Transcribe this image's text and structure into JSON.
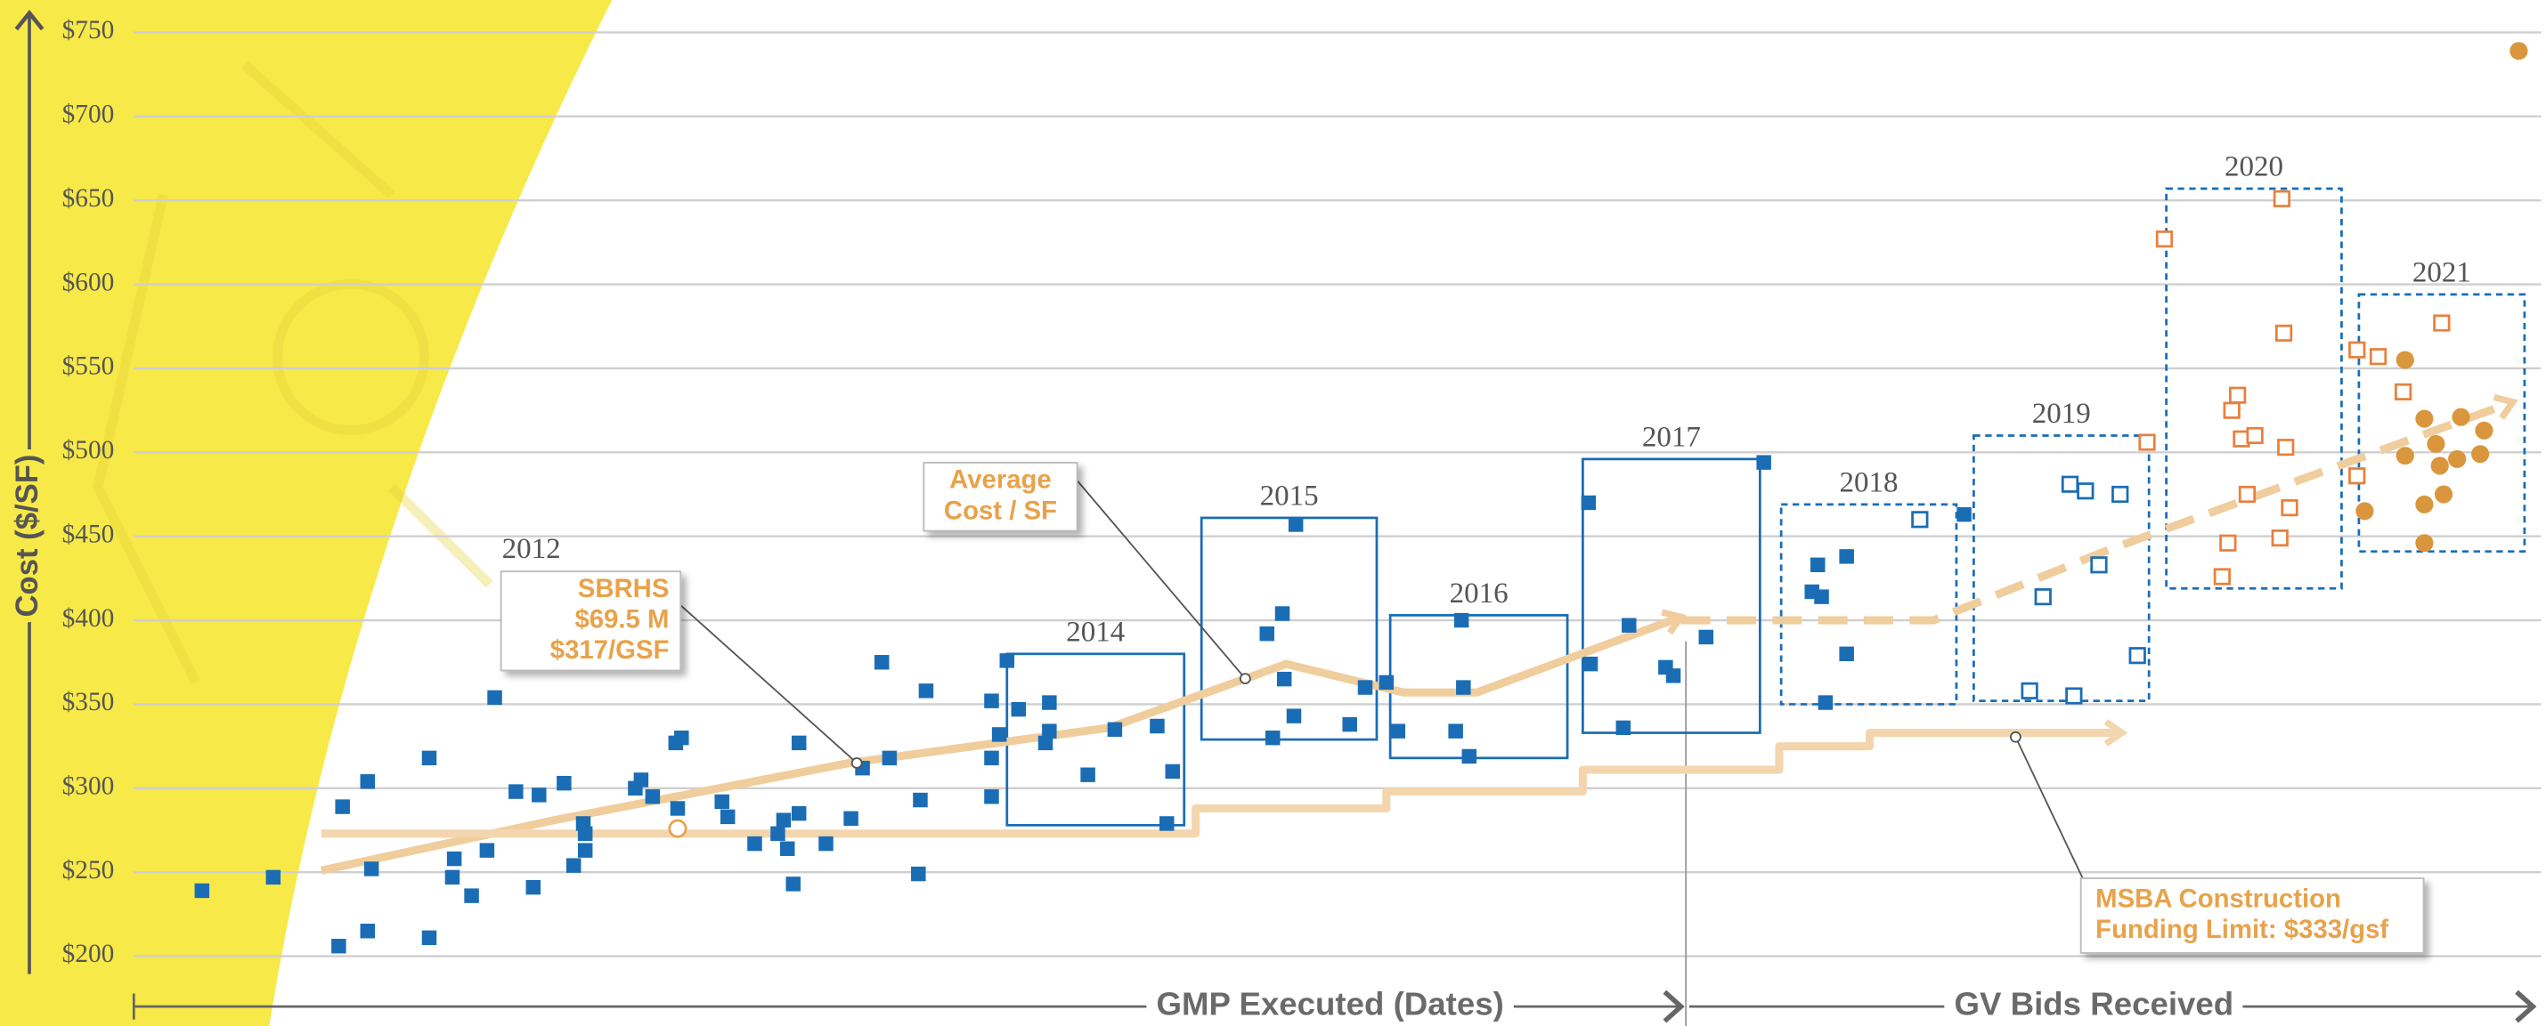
{
  "chart_data": {
    "type": "scatter",
    "y_label": "Cost ($/SF)",
    "x_axis_labels": [
      "GMP Executed (Dates)",
      "GV Bids Received"
    ],
    "xlim": [
      2009.5,
      2022
    ],
    "ylim": [
      200,
      750
    ],
    "yticks": [
      {
        "value": 200,
        "label": "$200"
      },
      {
        "value": 250,
        "label": "$250"
      },
      {
        "value": 300,
        "label": "$300"
      },
      {
        "value": 350,
        "label": "$350"
      },
      {
        "value": 400,
        "label": "$400"
      },
      {
        "value": 450,
        "label": "$450"
      },
      {
        "value": 500,
        "label": "$500"
      },
      {
        "value": 550,
        "label": "$550"
      },
      {
        "value": 600,
        "label": "$600"
      },
      {
        "value": 650,
        "label": "$650"
      },
      {
        "value": 700,
        "label": "$700"
      },
      {
        "value": 750,
        "label": "$750"
      }
    ],
    "grid": true,
    "series": [
      {
        "color": "#1a6db5",
        "marker": "square",
        "filled": true,
        "x": [
          2009.82,
          2010.19,
          2010.53,
          2010.55,
          2010.68,
          2010.68,
          2010.7,
          2011.0,
          2011.0,
          2011.12,
          2011.13,
          2011.22,
          2011.3,
          2011.34,
          2011.45,
          2011.54,
          2011.57,
          2011.7,
          2011.75,
          2011.8,
          2011.81,
          2011.81,
          2012.07,
          2012.1,
          2012.16,
          2012.28,
          2012.29,
          2012.31,
          2012.52,
          2012.55,
          2012.69,
          2012.81,
          2012.84,
          2012.86,
          2012.89,
          2012.92,
          2012.92,
          2013.06,
          2013.19,
          2013.25,
          2013.35,
          2013.39,
          2013.54,
          2013.55,
          2013.58,
          2013.92,
          2013.92,
          2013.92,
          2013.96,
          2014.0,
          2014.06,
          2014.2,
          2014.22,
          2014.22,
          2014.42,
          2014.56,
          2014.78,
          2014.83,
          2014.86,
          2015.35,
          2015.43,
          2015.5,
          2015.44,
          2015.38,
          2015.49,
          2015.78,
          2015.86,
          2015.97,
          2016.03,
          2016.33,
          2016.36,
          2016.37,
          2016.4,
          2017.02,
          2017.03,
          2017.2,
          2017.23,
          2017.42,
          2017.46,
          2017.63,
          2017.93,
          2018.18,
          2018.21,
          2018.23,
          2018.25,
          2018.36,
          2018.36,
          2018.97
        ],
        "values": [
          239,
          247,
          206,
          289,
          215,
          304,
          252,
          211,
          318,
          247,
          258,
          236,
          263,
          354,
          298,
          241,
          296,
          303,
          254,
          279,
          263,
          273,
          300,
          305,
          295,
          327,
          288,
          330,
          292,
          283,
          267,
          273,
          281,
          264,
          243,
          327,
          285,
          267,
          282,
          312,
          375,
          318,
          249,
          293,
          358,
          352,
          295,
          318,
          332,
          376,
          347,
          327,
          351,
          334,
          308,
          335,
          337,
          279,
          310,
          392,
          404,
          457,
          365,
          330,
          343,
          338,
          360,
          363,
          334,
          334,
          400,
          360,
          319,
          470,
          374,
          336,
          397,
          372,
          367,
          390,
          494,
          417,
          433,
          414,
          351,
          438,
          380,
          463
        ]
      },
      {
        "color": "#1a6db5",
        "marker": "square",
        "filled": false,
        "x": [
          2018.74,
          2019.38,
          2019.52,
          2019.6,
          2019.78,
          2019.67,
          2019.31,
          2019.54,
          2019.87
        ],
        "values": [
          460,
          414,
          481,
          477,
          475,
          433,
          358,
          355,
          379
        ]
      },
      {
        "color": "#e8803c",
        "marker": "square",
        "filled": false,
        "x": [
          2019.92,
          2020.01,
          2020.62,
          2020.63,
          2020.39,
          2020.36,
          2020.41,
          2020.48,
          2020.64,
          2020.44,
          2020.66,
          2020.34,
          2020.61,
          2020.31,
          2021.01,
          2021.01,
          2021.12,
          2021.25,
          2021.45
        ],
        "values": [
          506,
          627,
          651,
          571,
          534,
          525,
          508,
          510,
          503,
          475,
          467,
          446,
          449,
          426,
          486,
          561,
          557,
          536,
          577
        ]
      },
      {
        "color": "#d9963c",
        "marker": "circle",
        "filled": true,
        "x": [
          2021.05,
          2021.26,
          2021.26,
          2021.36,
          2021.36,
          2021.42,
          2021.44,
          2021.46,
          2021.55,
          2021.53,
          2021.65,
          2021.67,
          2021.36,
          2021.85
        ],
        "values": [
          465,
          555,
          498,
          469,
          520,
          505,
          492,
          475,
          521,
          496,
          499,
          513,
          446,
          739
        ]
      },
      {
        "color": "#e8a24a",
        "marker": "circle",
        "filled": false,
        "x": [
          2012.29
        ],
        "values": [
          276
        ]
      }
    ],
    "lines": [
      {
        "color": "#f0cd9c",
        "dashed": false,
        "x": [
          2010.44,
          2011.65,
          2013.18,
          2014.53,
          2015.45,
          2016.06,
          2016.44,
          2017.5
        ],
        "values": [
          251,
          281,
          315,
          336,
          374,
          357,
          357,
          402
        ]
      },
      {
        "color": "#f0cd9c",
        "dashed": true,
        "x": [
          2017.5,
          2018.81,
          2019.7,
          2021.82
        ],
        "values": [
          400,
          400,
          441,
          530
        ]
      },
      {
        "color": "#f3d6ae",
        "dashed": false,
        "x": [
          2010.44,
          2014.98,
          2014.98,
          2015.97,
          2015.97,
          2016.99,
          2016.99,
          2018.01,
          2018.01,
          2018.48,
          2018.48,
          2019.79
        ],
        "values": [
          273,
          273,
          288,
          288,
          298,
          298,
          311,
          311,
          325,
          325,
          333,
          333
        ]
      }
    ],
    "boxes": [
      {
        "label": "2014",
        "dashed": false,
        "x": [
          2014.0,
          2014.92
        ],
        "y": [
          278,
          380
        ]
      },
      {
        "label": "2015",
        "dashed": false,
        "x": [
          2015.01,
          2015.92
        ],
        "y": [
          329,
          461
        ]
      },
      {
        "label": "2016",
        "dashed": false,
        "x": [
          2015.99,
          2016.91
        ],
        "y": [
          318,
          403
        ]
      },
      {
        "label": "2017",
        "dashed": false,
        "x": [
          2016.99,
          2017.91
        ],
        "y": [
          333,
          496
        ]
      },
      {
        "label": "2018",
        "dashed": true,
        "x": [
          2018.02,
          2018.93
        ],
        "y": [
          350,
          469
        ]
      },
      {
        "label": "2019",
        "dashed": true,
        "x": [
          2019.02,
          2019.93
        ],
        "y": [
          352,
          510
        ]
      },
      {
        "label": "2020",
        "dashed": true,
        "x": [
          2020.02,
          2020.93
        ],
        "y": [
          419,
          657
        ]
      },
      {
        "label": "2021",
        "dashed": true,
        "x": [
          2021.02,
          2021.88
        ],
        "y": [
          441,
          594
        ]
      }
    ],
    "annotations": [
      {
        "text": "2012",
        "x": 2011.53,
        "y": 441
      }
    ],
    "callouts": [
      {
        "lines": [
          "SBRHS",
          "$69.5 M",
          "$317/GSF"
        ]
      },
      {
        "lines": [
          "Average",
          "Cost / SF"
        ]
      },
      {
        "lines": [
          "MSBA Construction",
          "Funding Limit: $333/gsf"
        ]
      }
    ]
  }
}
